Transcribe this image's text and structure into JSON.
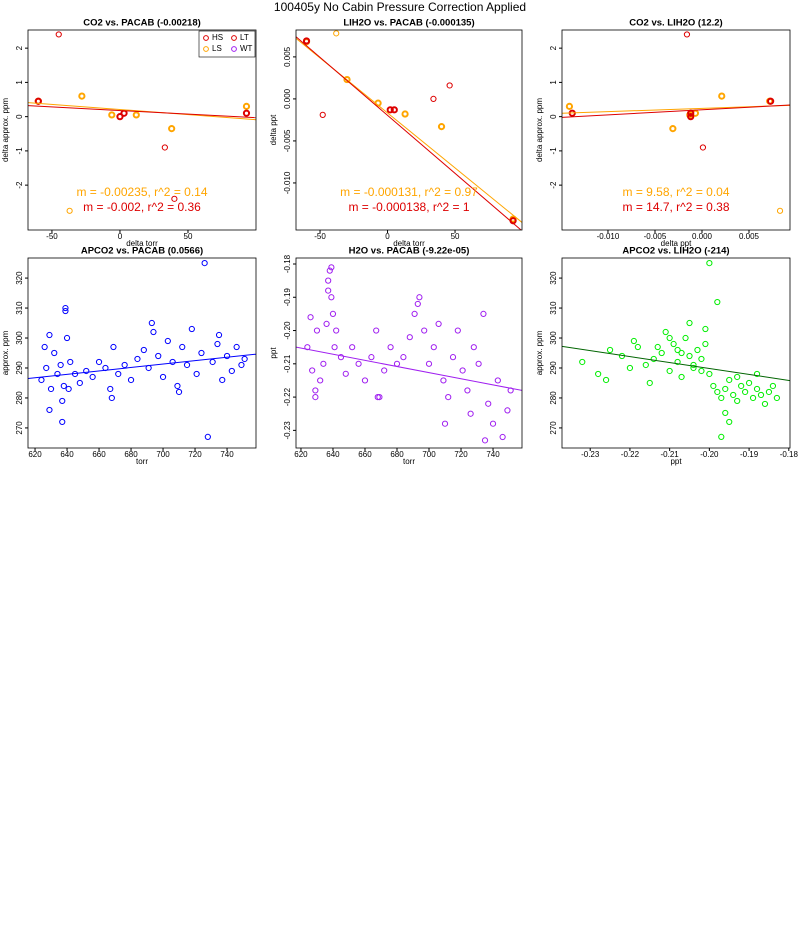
{
  "title": "100405y   No Cabin Pressure Correction Applied",
  "chart_data": [
    {
      "type": "scatter",
      "title": "CO2 vs. PACAB (-0.00218)",
      "xlabel": "delta torr",
      "ylabel": "delta approx. ppm",
      "xlim": [
        -67.6,
        100
      ],
      "ylim": [
        -3.31,
        2.53
      ],
      "xticks": [
        -50,
        0,
        50
      ],
      "yticks": [
        -2,
        -1,
        0,
        1,
        2
      ],
      "legend": [
        {
          "name": "HS",
          "color": "#dd0000"
        },
        {
          "name": "LS",
          "color": "#ffa500"
        },
        {
          "name": "LT",
          "color": "#dd0000"
        },
        {
          "name": "WT",
          "color": "#a020f0"
        }
      ],
      "series": [
        {
          "color": "#ffa500",
          "size": 2,
          "x": [
            -60,
            -28,
            -6,
            12,
            38,
            93
          ],
          "y": [
            0.45,
            0.6,
            0.05,
            0.05,
            -0.35,
            0.3
          ]
        },
        {
          "color": "#dd0000",
          "size": 2,
          "x": [
            -60,
            0,
            3,
            93
          ],
          "y": [
            0.45,
            0.0,
            0.1,
            0.1
          ]
        },
        {
          "color": "#dd0000",
          "size": 1,
          "x": [
            -45,
            33,
            40
          ],
          "y": [
            2.4,
            -0.9,
            -2.4
          ]
        },
        {
          "color": "#ffa500",
          "size": 1,
          "x": [
            -37
          ],
          "y": [
            -2.75
          ]
        }
      ],
      "fits": [
        {
          "color": "#ffa500",
          "x": [
            -67.6,
            100
          ],
          "y": [
            0.41,
            -0.09
          ]
        },
        {
          "color": "#dd0000",
          "x": [
            -67.6,
            100
          ],
          "y": [
            0.32,
            -0.03
          ]
        }
      ],
      "annotations": [
        {
          "text": "m = -0.00235, r^2 = 0.14",
          "color": "#ffa500"
        },
        {
          "text": "m = -0.002, r^2 = 0.36",
          "color": "#dd0000"
        }
      ]
    },
    {
      "type": "scatter",
      "title": "LIH2O vs. PACAB (-0.000135)",
      "xlabel": "delta torr",
      "ylabel": "delta ppt",
      "xlim": [
        -67.8,
        99.6
      ],
      "ylim": [
        -0.0156,
        0.0082
      ],
      "xticks": [
        -50,
        0,
        50
      ],
      "yticks": [
        {
          "value": -0.01,
          "label": "-0.010"
        },
        -0.005,
        {
          "value": 0,
          "label": "0.000"
        },
        0.005
      ],
      "series": [
        {
          "color": "#ffa500",
          "size": 2,
          "x": [
            -60,
            -30,
            -7,
            13,
            40,
            93
          ],
          "y": [
            0.0068,
            0.0023,
            -0.0005,
            -0.0018,
            -0.0033,
            -0.0143
          ]
        },
        {
          "color": "#dd0000",
          "size": 2,
          "x": [
            -60,
            2,
            5,
            93
          ],
          "y": [
            0.0069,
            -0.0013,
            -0.0013,
            -0.0145
          ]
        },
        {
          "color": "#ffa500",
          "size": 1,
          "x": [
            -38
          ],
          "y": [
            0.0078
          ]
        },
        {
          "color": "#dd0000",
          "size": 1,
          "x": [
            -48,
            34,
            46
          ],
          "y": [
            -0.0019,
            0.0,
            0.0016
          ]
        }
      ],
      "fits": [
        {
          "color": "#ffa500",
          "x": [
            -67.8,
            99.6
          ],
          "y": [
            0.0072,
            -0.0147
          ]
        },
        {
          "color": "#dd0000",
          "x": [
            -67.8,
            99.6
          ],
          "y": [
            0.0074,
            -0.0157
          ]
        }
      ],
      "annotations": [
        {
          "text": "m = -0.000131, r^2 = 0.97",
          "color": "#ffa500"
        },
        {
          "text": "m = -0.000138, r^2 = 1",
          "color": "#dd0000"
        }
      ]
    },
    {
      "type": "scatter",
      "title": "CO2 vs. LIH2O (12.2)",
      "xlabel": "delta ppt",
      "ylabel": "delta approx. ppm",
      "xlim": [
        -0.01489,
        0.00936
      ],
      "ylim": [
        -3.31,
        2.53
      ],
      "xticks": [
        {
          "value": -0.01,
          "label": "-0.010"
        },
        -0.005,
        {
          "value": 0,
          "label": "0.000"
        },
        0.005
      ],
      "yticks": [
        -2,
        -1,
        0,
        1,
        2
      ],
      "series": [
        {
          "color": "#ffa500",
          "size": 2,
          "x": [
            -0.0141,
            -0.0031,
            -0.0013,
            -0.0007,
            0.0021,
            0.0072
          ],
          "y": [
            0.3,
            -0.35,
            0.05,
            0.1,
            0.6,
            0.45
          ]
        },
        {
          "color": "#dd0000",
          "size": 2,
          "x": [
            -0.0138,
            -0.0012,
            -0.0012,
            0.0073
          ],
          "y": [
            0.1,
            0.0,
            0.1,
            0.45
          ]
        },
        {
          "color": "#dd0000",
          "size": 1,
          "x": [
            -0.0016,
            0.0001
          ],
          "y": [
            2.4,
            -0.9
          ]
        },
        {
          "color": "#ffa500",
          "size": 1,
          "x": [
            0.0083
          ],
          "y": [
            -2.75
          ]
        }
      ],
      "fits": [
        {
          "color": "#ffa500",
          "x": [
            -0.01489,
            0.00936
          ],
          "y": [
            0.1,
            0.33
          ]
        },
        {
          "color": "#dd0000",
          "x": [
            -0.01489,
            0.00936
          ],
          "y": [
            -0.02,
            0.34
          ]
        }
      ],
      "annotations": [
        {
          "text": "m = 9.58, r^2 = 0.04",
          "color": "#ffa500"
        },
        {
          "text": "m = 14.7, r^2 = 0.38",
          "color": "#dd0000"
        }
      ]
    },
    {
      "type": "scatter",
      "title": "APCO2 vs. PACAB (0.0566)",
      "xlabel": "torr",
      "ylabel": "approx. ppm",
      "xlim": [
        615.6,
        758.1
      ],
      "ylim": [
        263.3,
        326.7
      ],
      "xticks": [
        620,
        640,
        660,
        680,
        700,
        720,
        740
      ],
      "yticks": [
        270,
        280,
        290,
        300,
        310,
        320
      ],
      "series": [
        {
          "color": "#0000ff",
          "size": 1,
          "x": [
            624,
            626,
            627,
            629,
            630,
            632,
            634,
            636,
            637,
            638,
            639,
            640,
            641,
            642,
            645,
            648,
            652,
            656,
            660,
            664,
            667,
            669,
            672,
            676,
            680,
            684,
            688,
            691,
            694,
            697,
            700,
            703,
            706,
            709,
            712,
            715,
            718,
            721,
            724,
            726,
            728,
            731,
            734,
            737,
            740,
            743,
            746,
            749,
            751,
            629,
            637,
            639,
            668,
            693,
            710,
            735
          ],
          "y": [
            286,
            297,
            290,
            301,
            283,
            295,
            288,
            291,
            279,
            284,
            310,
            300,
            283,
            292,
            288,
            285,
            289,
            287,
            292,
            290,
            283,
            297,
            288,
            291,
            286,
            293,
            296,
            290,
            302,
            294,
            287,
            299,
            292,
            284,
            297,
            291,
            303,
            288,
            295,
            325,
            267,
            292,
            298,
            286,
            294,
            289,
            297,
            291,
            293,
            276,
            272,
            309,
            280,
            305,
            282,
            301
          ]
        }
      ],
      "fits": [
        {
          "color": "#0000ff",
          "x": [
            615.6,
            758.1
          ],
          "y": [
            286.5,
            294.6
          ]
        }
      ]
    },
    {
      "type": "scatter",
      "title": "H2O vs. PACAB (-9.22e-05)",
      "xlabel": "torr",
      "ylabel": "ppt",
      "xlim": [
        616.9,
        758.1
      ],
      "ylim": [
        -0.2353,
        -0.1782
      ],
      "xticks": [
        620,
        640,
        660,
        680,
        700,
        720,
        740
      ],
      "yticks": [
        -0.23,
        -0.22,
        -0.21,
        {
          "value": -0.2,
          "label": "-0.20"
        },
        -0.19,
        -0.18
      ],
      "series": [
        {
          "color": "#a020f0",
          "size": 1,
          "x": [
            624,
            626,
            627,
            629,
            630,
            632,
            634,
            636,
            637,
            638,
            639,
            640,
            641,
            642,
            645,
            648,
            652,
            656,
            660,
            664,
            667,
            669,
            672,
            676,
            680,
            684,
            688,
            691,
            694,
            697,
            700,
            703,
            706,
            709,
            712,
            715,
            718,
            721,
            724,
            726,
            728,
            731,
            734,
            737,
            740,
            743,
            746,
            749,
            751,
            629,
            637,
            639,
            668,
            693,
            710,
            735
          ],
          "y": [
            -0.205,
            -0.196,
            -0.212,
            -0.22,
            -0.2,
            -0.215,
            -0.21,
            -0.198,
            -0.188,
            -0.182,
            -0.19,
            -0.195,
            -0.205,
            -0.2,
            -0.208,
            -0.213,
            -0.205,
            -0.21,
            -0.215,
            -0.208,
            -0.2,
            -0.22,
            -0.212,
            -0.205,
            -0.21,
            -0.208,
            -0.202,
            -0.195,
            -0.19,
            -0.2,
            -0.21,
            -0.205,
            -0.198,
            -0.215,
            -0.22,
            -0.208,
            -0.2,
            -0.212,
            -0.218,
            -0.225,
            -0.205,
            -0.21,
            -0.195,
            -0.222,
            -0.228,
            -0.215,
            -0.232,
            -0.224,
            -0.218,
            -0.218,
            -0.185,
            -0.181,
            -0.22,
            -0.192,
            -0.228,
            -0.233
          ]
        }
      ],
      "fits": [
        {
          "color": "#a020f0",
          "x": [
            616.9,
            758.1
          ],
          "y": [
            -0.205,
            -0.218
          ]
        }
      ]
    },
    {
      "type": "scatter",
      "title": "APCO2 vs. LIH2O (-214)",
      "xlabel": "ppt",
      "ylabel": "approx. ppm",
      "xlim": [
        -0.2371,
        -0.1797
      ],
      "ylim": [
        263.3,
        326.7
      ],
      "xticks": [
        -0.23,
        -0.22,
        -0.21,
        {
          "value": -0.2,
          "label": "-0.20"
        },
        -0.19,
        -0.18
      ],
      "yticks": [
        270,
        280,
        290,
        300,
        310,
        320
      ],
      "series": [
        {
          "color": "#00ee00",
          "size": 1,
          "x": [
            -0.232,
            -0.228,
            -0.225,
            -0.222,
            -0.22,
            -0.218,
            -0.216,
            -0.214,
            -0.212,
            -0.21,
            -0.209,
            -0.208,
            -0.207,
            -0.206,
            -0.205,
            -0.204,
            -0.203,
            -0.202,
            -0.201,
            -0.2,
            -0.199,
            -0.198,
            -0.197,
            -0.196,
            -0.195,
            -0.194,
            -0.193,
            -0.192,
            -0.191,
            -0.19,
            -0.189,
            -0.188,
            -0.187,
            -0.186,
            -0.185,
            -0.184,
            -0.183,
            -0.226,
            -0.219,
            -0.213,
            -0.211,
            -0.207,
            -0.204,
            -0.201,
            -0.198,
            -0.196,
            -0.193,
            -0.2,
            -0.197,
            -0.205,
            -0.21,
            -0.202,
            -0.188,
            -0.215,
            -0.195,
            -0.208
          ],
          "y": [
            292,
            288,
            296,
            294,
            290,
            297,
            291,
            293,
            295,
            289,
            298,
            292,
            287,
            300,
            294,
            291,
            296,
            289,
            303,
            288,
            284,
            282,
            280,
            283,
            286,
            281,
            279,
            284,
            282,
            285,
            280,
            283,
            281,
            278,
            282,
            284,
            280,
            286,
            299,
            297,
            302,
            295,
            290,
            298,
            312,
            275,
            287,
            325,
            267,
            305,
            300,
            293,
            288,
            285,
            272,
            296
          ]
        }
      ],
      "fits": [
        {
          "color": "#006400",
          "x": [
            -0.2371,
            -0.1797
          ],
          "y": [
            297.2,
            285.8
          ]
        }
      ]
    }
  ]
}
